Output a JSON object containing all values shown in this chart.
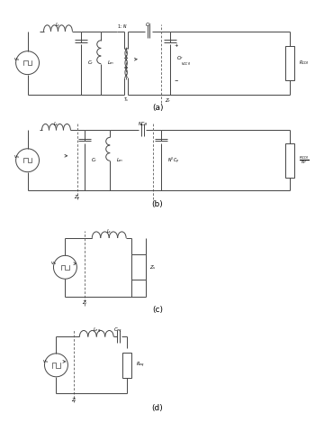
{
  "bg_color": "#ffffff",
  "line_color": "#444444",
  "label_color": "#000000",
  "fig_width": 3.5,
  "fig_height": 4.79,
  "dpi": 100,
  "label_a": "(a)",
  "label_b": "(b)",
  "label_c": "(c)",
  "label_d": "(d)"
}
